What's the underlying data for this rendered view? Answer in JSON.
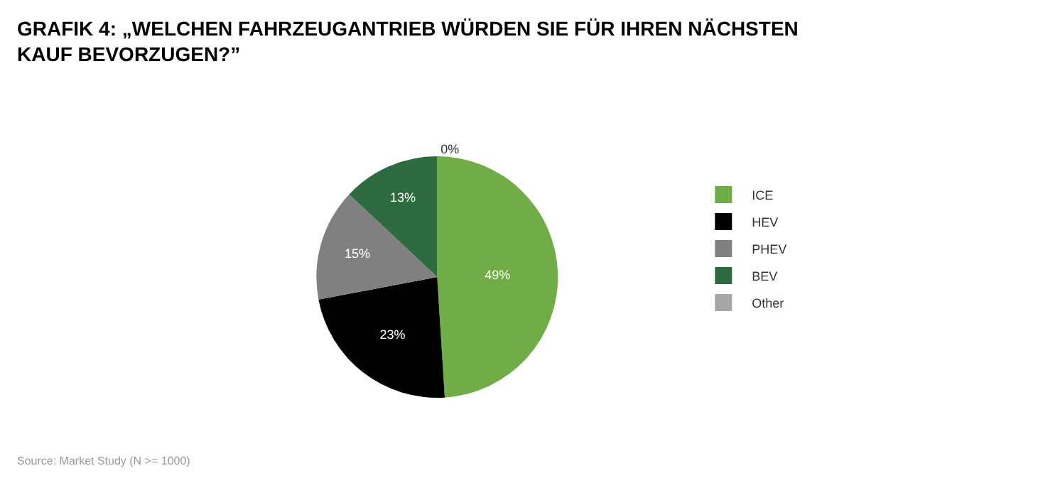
{
  "chart_data": {
    "type": "pie",
    "title": "GRAFIK 4: „WELCHEN FAHRZEUGANTRIEB WÜRDEN SIE FÜR IHREN NÄCHSTEN KAUF BEVORZUGEN?”",
    "categories": [
      "ICE",
      "HEV",
      "PHEV",
      "BEV",
      "Other"
    ],
    "values": [
      49,
      23,
      15,
      13,
      0
    ],
    "value_labels": [
      "49%",
      "23%",
      "15%",
      "13%",
      "0%"
    ],
    "colors": [
      "#70ad47",
      "#000000",
      "#808080",
      "#2e6b3e",
      "#a6a6a6"
    ],
    "legend": "right",
    "annotations": [
      "Source: Market Study (N >= 1000)"
    ]
  }
}
